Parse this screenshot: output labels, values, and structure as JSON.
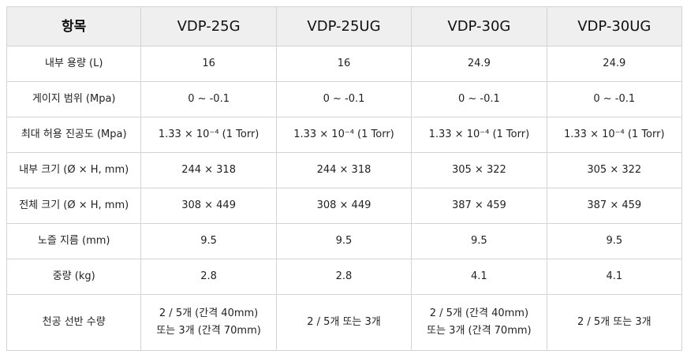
{
  "table": {
    "headers": [
      "항목",
      "VDP-25G",
      "VDP-25UG",
      "VDP-30G",
      "VDP-30UG"
    ],
    "rows": [
      {
        "label": "내부 용량 (L)",
        "values": [
          [
            "16"
          ],
          [
            "16"
          ],
          [
            "24.9"
          ],
          [
            "24.9"
          ]
        ]
      },
      {
        "label": "게이지 범위 (Mpa)",
        "values": [
          [
            "0 ~ -0.1"
          ],
          [
            "0 ~ -0.1"
          ],
          [
            "0 ~ -0.1"
          ],
          [
            "0 ~ -0.1"
          ]
        ]
      },
      {
        "label": "최대 허용 진공도 (Mpa)",
        "values": [
          [
            "1.33 × 10⁻⁴ (1 Torr)"
          ],
          [
            "1.33 × 10⁻⁴ (1 Torr)"
          ],
          [
            "1.33 × 10⁻⁴ (1 Torr)"
          ],
          [
            "1.33 × 10⁻⁴ (1 Torr)"
          ]
        ]
      },
      {
        "label": "내부 크기 (Ø × H, mm)",
        "values": [
          [
            "244 × 318"
          ],
          [
            "244 × 318"
          ],
          [
            "305 × 322"
          ],
          [
            "305 × 322"
          ]
        ]
      },
      {
        "label": "전체 크기 (Ø × H, mm)",
        "values": [
          [
            "308 × 449"
          ],
          [
            "308 × 449"
          ],
          [
            "387 × 459"
          ],
          [
            "387 × 459"
          ]
        ]
      },
      {
        "label": "노즐 지름 (mm)",
        "values": [
          [
            "9.5"
          ],
          [
            "9.5"
          ],
          [
            "9.5"
          ],
          [
            "9.5"
          ]
        ]
      },
      {
        "label": "중량 (kg)",
        "values": [
          [
            "2.8"
          ],
          [
            "2.8"
          ],
          [
            "4.1"
          ],
          [
            "4.1"
          ]
        ]
      },
      {
        "label": "천공 선반 수량",
        "values": [
          [
            "2 / 5개 (간격 40mm)",
            "또는 3개 (간격 70mm)"
          ],
          [
            "2 / 5개 또는 3개"
          ],
          [
            "2 / 5개 (간격 40mm)",
            "또는 3개 (간격 70mm)"
          ],
          [
            "2 / 5개 또는 3개"
          ]
        ]
      }
    ]
  }
}
